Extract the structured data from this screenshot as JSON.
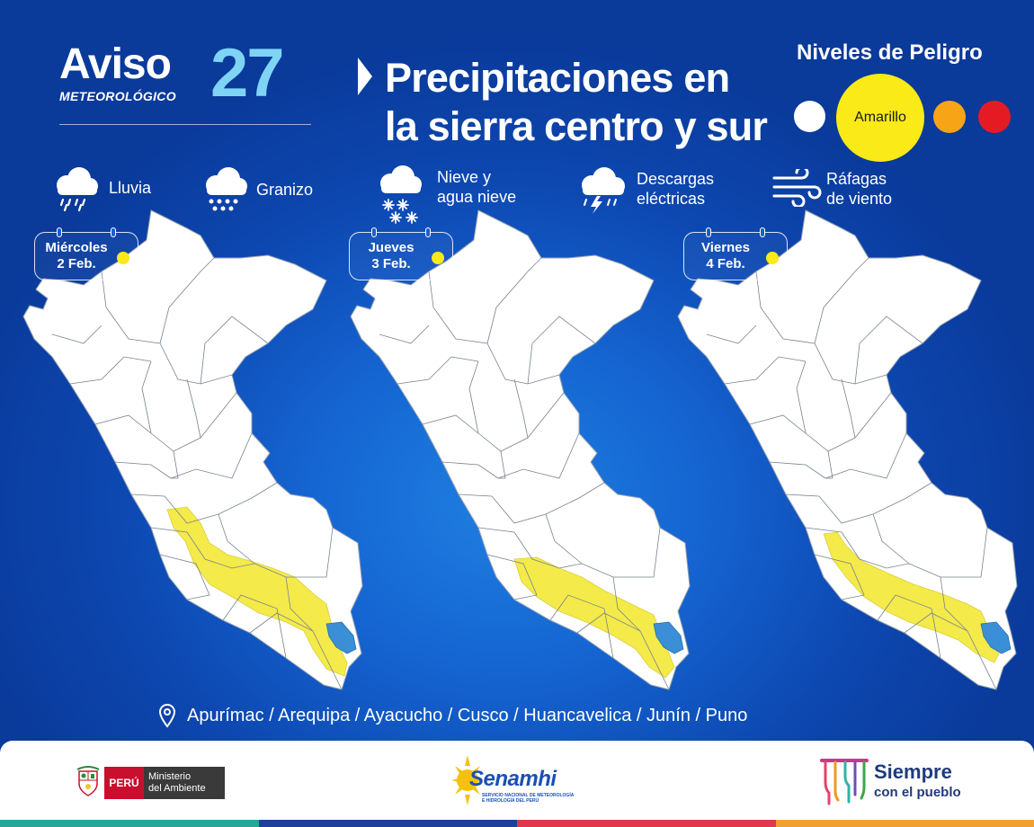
{
  "header": {
    "aviso_word": "Aviso",
    "aviso_sub": "METEOROLÓGICO",
    "aviso_number": "27",
    "title_line1": "Precipitaciones en",
    "title_line2": "la sierra centro y sur"
  },
  "danger_levels": {
    "title": "Niveles de Peligro",
    "active_label": "Amarillo",
    "colors": {
      "white": "#ffffff",
      "yellow": "#f9ea18",
      "orange": "#f7a516",
      "red": "#e41b23"
    }
  },
  "hazards": [
    {
      "label": "Lluvia",
      "icon": "rain-cloud-icon"
    },
    {
      "label": "Granizo",
      "icon": "hail-cloud-icon"
    },
    {
      "label_line1": "Nieve y",
      "label_line2": "agua nieve",
      "icon": "snow-cloud-icon"
    },
    {
      "label_line1": "Descargas",
      "label_line2": "eléctricas",
      "icon": "storm-cloud-icon"
    },
    {
      "label_line1": "Ráfagas",
      "label_line2": "de viento",
      "icon": "wind-icon"
    }
  ],
  "days": [
    {
      "day": "Miércoles",
      "date": "2 Feb.",
      "level": "Amarillo"
    },
    {
      "day": "Jueves",
      "date": "3 Feb.",
      "level": "Amarillo"
    },
    {
      "day": "Viernes",
      "date": "4 Feb.",
      "level": "Amarillo"
    }
  ],
  "colors": {
    "warning_zone": "#f4ea4a",
    "lake_titicaca": "#3a8fd6",
    "accent_cyan": "#7fd4f6"
  },
  "regions": {
    "icon": "location-pin-icon",
    "text": "Apurímac / Arequipa / Ayacucho / Cusco / Huancavelica / Junín /  Puno"
  },
  "footer": {
    "peru_label": "PERÚ",
    "ministerio_line1": "Ministerio",
    "ministerio_line2": "del Ambiente",
    "senamhi_name": "Senamhi",
    "senamhi_sub_line1": "SERVICIO NACIONAL DE METEOROLOGÍA",
    "senamhi_sub_line2": "E HIDROLOGÍA DEL PERÚ",
    "siempre_line1": "Siempre",
    "siempre_line2": "con el pueblo"
  }
}
